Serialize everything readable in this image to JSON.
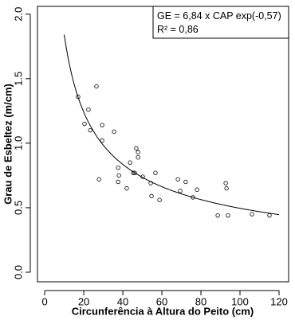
{
  "chart_data": {
    "type": "scatter",
    "x_label": "Circunferência à Altura do Peito (cm)",
    "y_label": "Grau de Esbeltez (m/cm)",
    "annotation": [
      "GE = 6,84 x CAP exp(-0,57)",
      "R² = 0,86"
    ],
    "x": [
      17.1,
      26.5,
      22.4,
      20.4,
      23.3,
      29.4,
      29.4,
      35.5,
      27.8,
      37.6,
      38.0,
      37.6,
      42.0,
      43.7,
      46.9,
      47.8,
      47.8,
      46.1,
      45.3,
      50.2,
      54.3,
      56.7,
      54.7,
      58.8,
      68.2,
      69.4,
      72.2,
      78.0,
      75.9,
      88.6,
      92.7,
      93.1,
      93.9,
      106.1,
      115.1
    ],
    "values": [
      1.36,
      1.44,
      1.26,
      1.15,
      1.1,
      1.14,
      1.02,
      1.09,
      0.72,
      0.81,
      0.75,
      0.7,
      0.65,
      0.85,
      0.96,
      0.93,
      0.89,
      0.77,
      0.77,
      0.74,
      0.69,
      0.77,
      0.59,
      0.56,
      0.72,
      0.63,
      0.7,
      0.64,
      0.58,
      0.44,
      0.69,
      0.65,
      0.44,
      0.45,
      0.44
    ],
    "color": "#000000",
    "fit": {
      "a": 6.84,
      "b": -0.57,
      "x_range": [
        10,
        120
      ]
    },
    "xlim": [
      -3.7,
      124.9
    ],
    "ylim": [
      -0.074,
      2.06
    ],
    "xticks": [
      0,
      20,
      40,
      60,
      80,
      100,
      120
    ],
    "yticks": [
      {
        "value": 0,
        "label": "0.0"
      },
      {
        "value": 0.5,
        "label": "0.5"
      },
      {
        "value": 1,
        "label": "1.0"
      },
      {
        "value": 1.5,
        "label": "1.5"
      },
      {
        "value": 2,
        "label": "2.0"
      }
    ]
  }
}
